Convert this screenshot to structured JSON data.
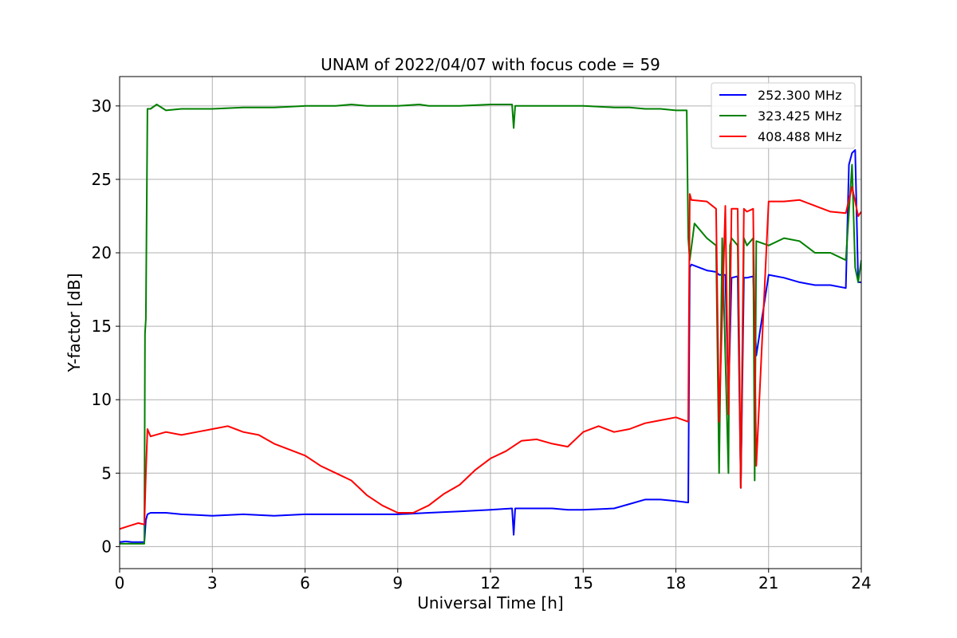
{
  "chart_data": {
    "type": "line",
    "title": "UNAM of 2022/04/07 with focus code = 59",
    "xlabel": "Universal Time [h]",
    "ylabel": "Y-factor [dB]",
    "xlim": [
      0,
      24
    ],
    "ylim": [
      -1.5,
      32
    ],
    "xticks": [
      0,
      3,
      6,
      9,
      12,
      15,
      18,
      21,
      24
    ],
    "xtick_labels": [
      "0",
      "3",
      "6",
      "9",
      "12",
      "15",
      "18",
      "21",
      "24"
    ],
    "yticks": [
      0,
      5,
      10,
      15,
      20,
      25,
      30
    ],
    "ytick_labels": [
      "0",
      "5",
      "10",
      "15",
      "20",
      "25",
      "30"
    ],
    "grid": true,
    "legend_position": "top-right",
    "series": [
      {
        "name": "252.300 MHz",
        "color": "#0000ff",
        "x": [
          0,
          0.2,
          0.4,
          0.6,
          0.8,
          0.85,
          0.9,
          1.0,
          1.5,
          2.0,
          3.0,
          4.0,
          5.0,
          6.0,
          7.0,
          8.0,
          9.0,
          10.0,
          11.0,
          12.0,
          12.7,
          12.75,
          12.8,
          13.0,
          14.0,
          14.5,
          15.0,
          16.0,
          16.5,
          17.0,
          17.5,
          18.0,
          18.4,
          18.45,
          18.5,
          19.0,
          19.3,
          19.4,
          19.6,
          19.7,
          19.8,
          20.0,
          20.1,
          20.2,
          20.3,
          20.5,
          20.6,
          21.0,
          21.5,
          22.0,
          22.5,
          23.0,
          23.5,
          23.6,
          23.7,
          23.8,
          23.9,
          24.0
        ],
        "y": [
          0.3,
          0.35,
          0.3,
          0.3,
          0.3,
          1.8,
          2.2,
          2.3,
          2.3,
          2.2,
          2.1,
          2.2,
          2.1,
          2.2,
          2.2,
          2.2,
          2.2,
          2.3,
          2.4,
          2.5,
          2.6,
          0.8,
          2.6,
          2.6,
          2.6,
          2.5,
          2.5,
          2.6,
          2.9,
          3.2,
          3.2,
          3.1,
          3.0,
          19.0,
          19.2,
          18.8,
          18.7,
          18.5,
          18.5,
          10.0,
          18.3,
          18.4,
          4.0,
          18.3,
          18.3,
          18.4,
          13.0,
          18.5,
          18.3,
          18.0,
          17.8,
          17.8,
          17.6,
          26.0,
          26.8,
          27.0,
          18.0,
          18.0
        ]
      },
      {
        "name": "323.425 MHz",
        "color": "#008000",
        "x": [
          0,
          0.4,
          0.8,
          0.82,
          0.85,
          0.9,
          1.0,
          1.2,
          1.5,
          2.0,
          3.0,
          4.0,
          5.0,
          6.0,
          7.0,
          7.5,
          8.0,
          9.0,
          9.7,
          10.0,
          11.0,
          12.0,
          12.7,
          12.75,
          12.8,
          13.0,
          14.0,
          15.0,
          16.0,
          16.5,
          17.0,
          17.5,
          18.0,
          18.35,
          18.4,
          18.45,
          18.6,
          19.0,
          19.3,
          19.4,
          19.5,
          19.7,
          19.75,
          19.8,
          20.0,
          20.1,
          20.2,
          20.3,
          20.5,
          20.55,
          20.6,
          21.0,
          21.5,
          22.0,
          22.5,
          23.0,
          23.5,
          23.7,
          23.8,
          23.9,
          24.0
        ],
        "y": [
          0.2,
          0.2,
          0.2,
          14.5,
          15.5,
          29.8,
          29.8,
          30.1,
          29.7,
          29.8,
          29.8,
          29.9,
          29.9,
          30.0,
          30.0,
          30.1,
          30.0,
          30.0,
          30.1,
          30.0,
          30.0,
          30.1,
          30.1,
          28.5,
          30.0,
          30.0,
          30.0,
          30.0,
          29.9,
          29.9,
          29.8,
          29.8,
          29.7,
          29.7,
          21.0,
          19.5,
          22.0,
          21.0,
          20.5,
          5.0,
          21.0,
          5.0,
          20.5,
          21.0,
          20.5,
          4.0,
          21.0,
          20.5,
          21.0,
          4.5,
          20.8,
          20.5,
          21.0,
          20.8,
          20.0,
          20.0,
          19.5,
          26.0,
          19.0,
          18.0,
          19.5
        ]
      },
      {
        "name": "408.488 MHz",
        "color": "#ff0000",
        "x": [
          0,
          0.3,
          0.6,
          0.8,
          0.85,
          0.9,
          1.0,
          1.5,
          2.0,
          2.5,
          3.0,
          3.5,
          4.0,
          4.5,
          5.0,
          5.5,
          6.0,
          6.5,
          7.0,
          7.5,
          8.0,
          8.5,
          9.0,
          9.5,
          10.0,
          10.5,
          11.0,
          11.5,
          12.0,
          12.5,
          13.0,
          13.5,
          14.0,
          14.5,
          15.0,
          15.5,
          16.0,
          16.5,
          17.0,
          17.5,
          18.0,
          18.4,
          18.45,
          18.5,
          19.0,
          19.3,
          19.4,
          19.6,
          19.7,
          19.8,
          20.0,
          20.1,
          20.2,
          20.3,
          20.5,
          20.6,
          21.0,
          21.5,
          22.0,
          22.5,
          23.0,
          23.5,
          23.7,
          23.8,
          23.9,
          24.0
        ],
        "y": [
          1.2,
          1.4,
          1.6,
          1.5,
          5.0,
          8.0,
          7.5,
          7.8,
          7.6,
          7.8,
          8.0,
          8.2,
          7.8,
          7.6,
          7.0,
          6.6,
          6.2,
          5.5,
          5.0,
          4.5,
          3.5,
          2.8,
          2.3,
          2.3,
          2.8,
          3.6,
          4.2,
          5.2,
          6.0,
          6.5,
          7.2,
          7.3,
          7.0,
          6.8,
          7.8,
          8.2,
          7.8,
          8.0,
          8.4,
          8.6,
          8.8,
          8.5,
          24.0,
          23.6,
          23.5,
          23.0,
          8.5,
          23.2,
          9.0,
          23.0,
          23.0,
          4.0,
          23.0,
          22.8,
          23.0,
          5.5,
          23.5,
          23.5,
          23.6,
          23.2,
          22.8,
          22.7,
          24.5,
          23.5,
          22.5,
          22.8
        ]
      }
    ]
  }
}
